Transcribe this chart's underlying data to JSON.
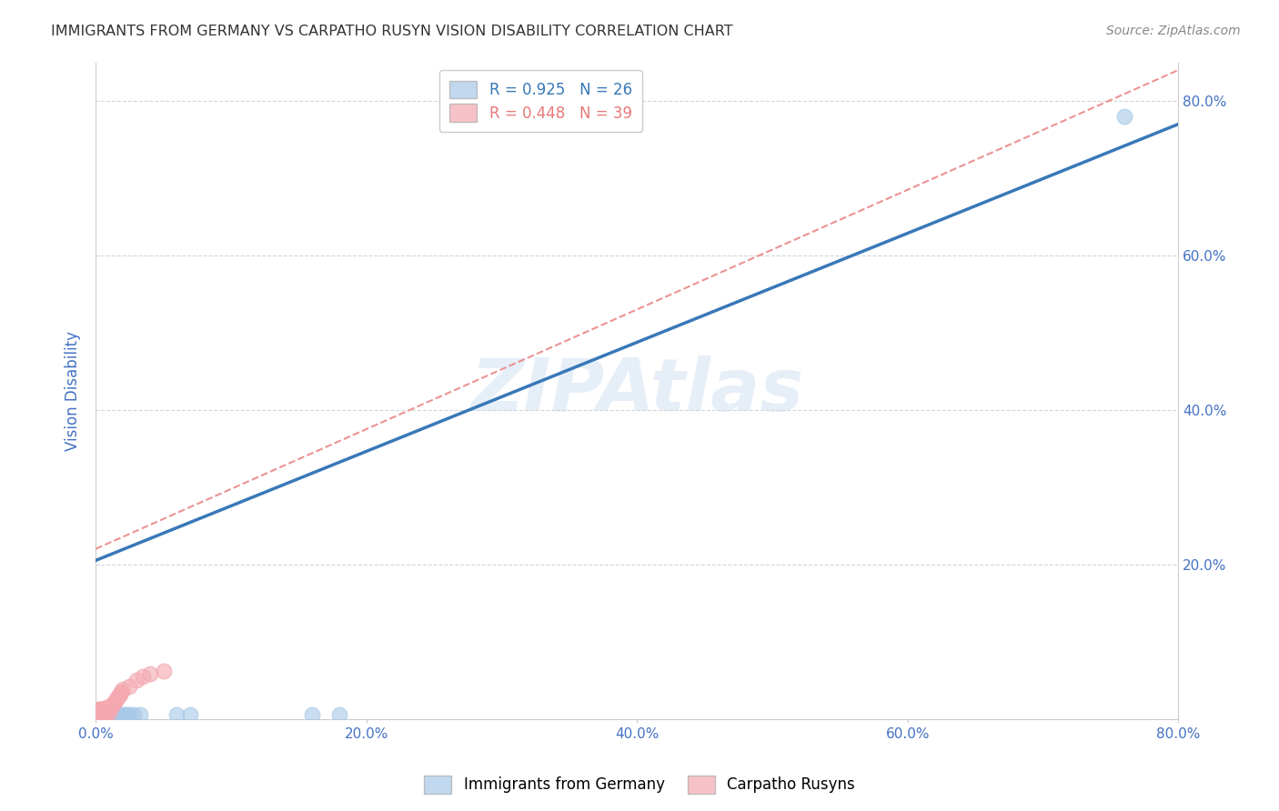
{
  "title": "IMMIGRANTS FROM GERMANY VS CARPATHO RUSYN VISION DISABILITY CORRELATION CHART",
  "source": "Source: ZipAtlas.com",
  "ylabel_text": "Vision Disability",
  "watermark": "ZIPAtlas",
  "xmin": 0.0,
  "xmax": 0.8,
  "ymin": 0.0,
  "ymax": 0.85,
  "x_tick_labels": [
    "0.0%",
    "20.0%",
    "40.0%",
    "60.0%",
    "80.0%"
  ],
  "x_tick_vals": [
    0.0,
    0.2,
    0.4,
    0.6,
    0.8
  ],
  "y_tick_labels": [
    "20.0%",
    "40.0%",
    "60.0%",
    "80.0%"
  ],
  "y_tick_vals": [
    0.2,
    0.4,
    0.6,
    0.8
  ],
  "blue_R": 0.925,
  "blue_N": 26,
  "pink_R": 0.448,
  "pink_N": 39,
  "blue_color": "#a8c8e8",
  "pink_color": "#f4a8b0",
  "blue_line_color": "#3878b8",
  "pink_line_color": "#e87878",
  "blue_line_x": [
    0.0,
    0.8
  ],
  "blue_line_y": [
    0.205,
    0.77
  ],
  "pink_line_x": [
    0.0,
    0.8
  ],
  "pink_line_y": [
    0.22,
    0.84
  ],
  "blue_scatter_x": [
    0.002,
    0.003,
    0.004,
    0.005,
    0.006,
    0.007,
    0.008,
    0.009,
    0.01,
    0.011,
    0.012,
    0.013,
    0.014,
    0.015,
    0.016,
    0.018,
    0.02,
    0.022,
    0.025,
    0.028,
    0.033,
    0.06,
    0.07,
    0.16,
    0.18,
    0.76
  ],
  "blue_scatter_y": [
    0.005,
    0.005,
    0.005,
    0.005,
    0.005,
    0.005,
    0.005,
    0.005,
    0.005,
    0.005,
    0.005,
    0.005,
    0.005,
    0.005,
    0.005,
    0.005,
    0.005,
    0.005,
    0.005,
    0.005,
    0.005,
    0.005,
    0.005,
    0.005,
    0.005,
    0.78
  ],
  "pink_scatter_x": [
    0.001,
    0.001,
    0.001,
    0.002,
    0.002,
    0.002,
    0.003,
    0.003,
    0.003,
    0.004,
    0.004,
    0.004,
    0.005,
    0.005,
    0.005,
    0.006,
    0.006,
    0.007,
    0.007,
    0.008,
    0.008,
    0.009,
    0.01,
    0.01,
    0.011,
    0.012,
    0.013,
    0.014,
    0.015,
    0.016,
    0.017,
    0.018,
    0.019,
    0.02,
    0.025,
    0.03,
    0.035,
    0.04,
    0.05
  ],
  "pink_scatter_y": [
    0.005,
    0.008,
    0.01,
    0.005,
    0.008,
    0.012,
    0.005,
    0.008,
    0.012,
    0.005,
    0.008,
    0.012,
    0.005,
    0.008,
    0.012,
    0.008,
    0.012,
    0.008,
    0.012,
    0.008,
    0.015,
    0.012,
    0.008,
    0.015,
    0.015,
    0.018,
    0.02,
    0.022,
    0.025,
    0.028,
    0.03,
    0.032,
    0.035,
    0.038,
    0.042,
    0.05,
    0.055,
    0.058,
    0.062
  ],
  "legend_blue_label": "Immigrants from Germany",
  "legend_pink_label": "Carpatho Rusyns",
  "background_color": "#ffffff",
  "grid_color": "#cccccc",
  "title_color": "#333333",
  "axis_label_color": "#4472c4",
  "tick_label_color": "#4472c4"
}
